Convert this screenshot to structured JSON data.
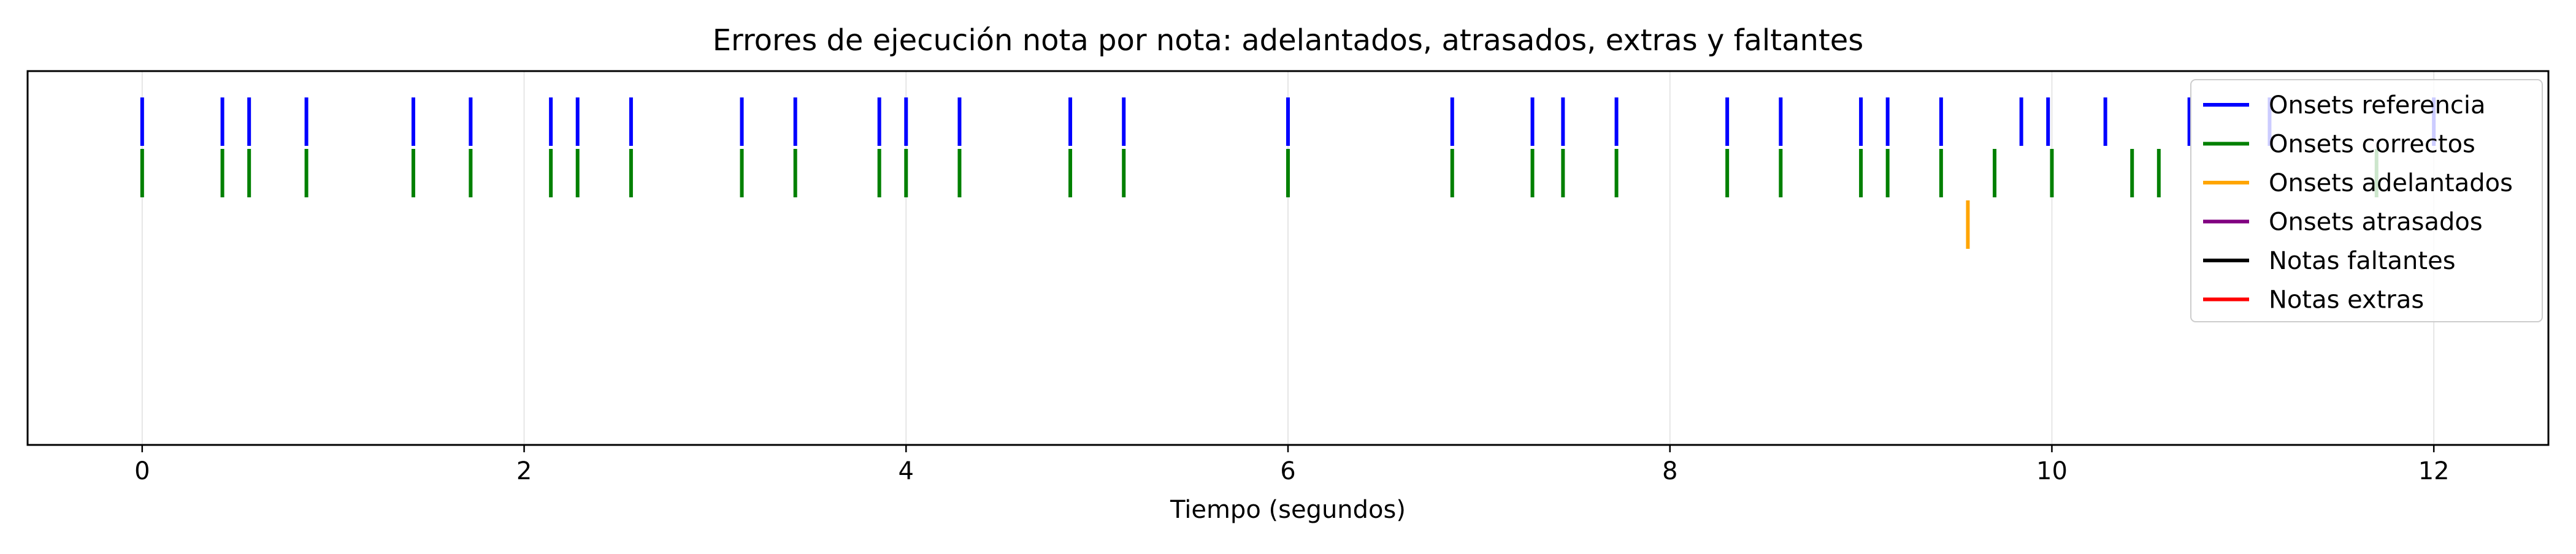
{
  "chart_data": {
    "type": "event-raster",
    "title": "Errores de ejecución nota por nota: adelantados, atrasados, extras y faltantes",
    "xlabel": "Tiempo (segundos)",
    "ylabel": "",
    "xlim": [
      -0.6,
      12.6
    ],
    "xticks": [
      0,
      2,
      4,
      6,
      8,
      10,
      12
    ],
    "grid": "vertical",
    "legend_position": "top-right",
    "series": [
      {
        "name": "Onsets referencia",
        "color": "#0000ff",
        "row": 0,
        "values": [
          0,
          0.42,
          0.56,
          0.86,
          1.42,
          1.72,
          2.14,
          2.28,
          2.56,
          3.14,
          3.42,
          3.86,
          4.0,
          4.28,
          4.86,
          5.14,
          6.0,
          6.86,
          7.28,
          7.44,
          7.72,
          8.3,
          8.58,
          9.0,
          9.14,
          9.42,
          9.84,
          9.98,
          10.28,
          10.72,
          11.14,
          12.0
        ]
      },
      {
        "name": "Onsets correctos",
        "color": "#008000",
        "row": 1,
        "values": [
          0,
          0.42,
          0.56,
          0.86,
          1.42,
          1.72,
          2.14,
          2.28,
          2.56,
          3.14,
          3.42,
          3.86,
          4.0,
          4.28,
          4.86,
          5.14,
          6.0,
          6.86,
          7.28,
          7.44,
          7.72,
          8.3,
          8.58,
          9.0,
          9.14,
          9.42,
          9.7,
          10.0,
          10.42,
          10.56,
          11.7
        ]
      },
      {
        "name": "Onsets adelantados",
        "color": "#ffa500",
        "row": 2,
        "values": [
          9.56
        ]
      },
      {
        "name": "Onsets atrasados",
        "color": "#800080",
        "row": 3,
        "values": []
      },
      {
        "name": "Notas faltantes",
        "color": "#000000",
        "row": 4,
        "values": []
      },
      {
        "name": "Notas extras",
        "color": "#ff0000",
        "row": 5,
        "values": []
      }
    ]
  }
}
